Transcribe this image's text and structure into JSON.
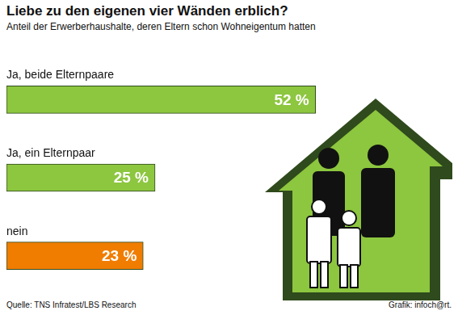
{
  "chart_data": {
    "type": "bar",
    "orientation": "horizontal",
    "title": "Liebe zu den eigenen vier Wänden erblich?",
    "subtitle": "Anteil der Erwerberhaushalte, deren Eltern schon Wohneigentum hatten",
    "categories": [
      "Ja, beide Elternpaare",
      "Ja, ein Elternpaar",
      "nein"
    ],
    "values": [
      52,
      25,
      23
    ],
    "value_labels": [
      "52 %",
      "25 %",
      "23 %"
    ],
    "colors": [
      "#8dc63f",
      "#8dc63f",
      "#f07d00"
    ],
    "xlim": [
      0,
      75
    ],
    "data_labels": true,
    "tick_labels": false,
    "grid": false,
    "source": "Quelle: TNS Infratest/LBS Research",
    "credit": "Grafik: infoch@rt."
  }
}
